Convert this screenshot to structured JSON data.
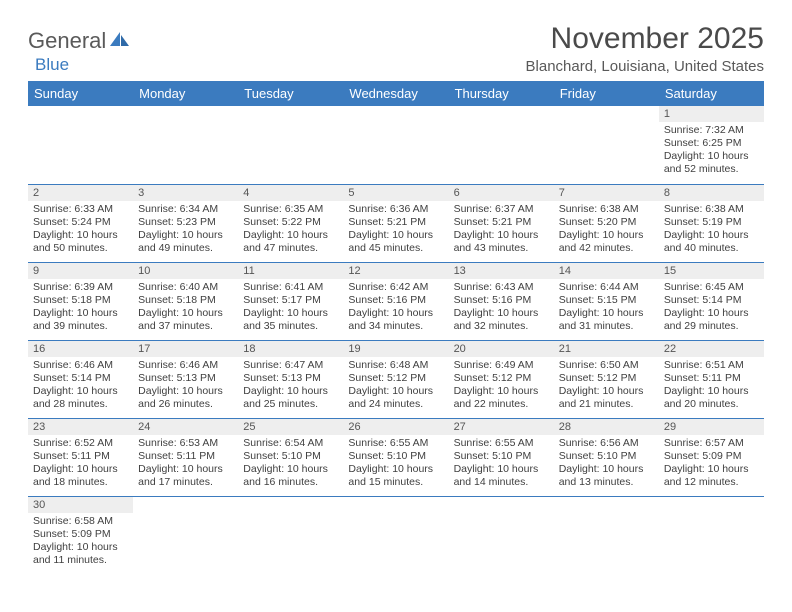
{
  "brand": {
    "part1": "General",
    "part2": "Blue",
    "logo_color": "#3b7bbf"
  },
  "title": "November 2025",
  "location": "Blanchard, Louisiana, United States",
  "colors": {
    "header_bg": "#3b7bbf",
    "header_fg": "#ffffff",
    "daybar_bg": "#eeeeee",
    "rule": "#3b7bbf"
  },
  "weekdays": [
    "Sunday",
    "Monday",
    "Tuesday",
    "Wednesday",
    "Thursday",
    "Friday",
    "Saturday"
  ],
  "weeks": [
    [
      null,
      null,
      null,
      null,
      null,
      null,
      {
        "n": "1",
        "sr": "Sunrise: 7:32 AM",
        "ss": "Sunset: 6:25 PM",
        "d1": "Daylight: 10 hours",
        "d2": "and 52 minutes."
      }
    ],
    [
      {
        "n": "2",
        "sr": "Sunrise: 6:33 AM",
        "ss": "Sunset: 5:24 PM",
        "d1": "Daylight: 10 hours",
        "d2": "and 50 minutes."
      },
      {
        "n": "3",
        "sr": "Sunrise: 6:34 AM",
        "ss": "Sunset: 5:23 PM",
        "d1": "Daylight: 10 hours",
        "d2": "and 49 minutes."
      },
      {
        "n": "4",
        "sr": "Sunrise: 6:35 AM",
        "ss": "Sunset: 5:22 PM",
        "d1": "Daylight: 10 hours",
        "d2": "and 47 minutes."
      },
      {
        "n": "5",
        "sr": "Sunrise: 6:36 AM",
        "ss": "Sunset: 5:21 PM",
        "d1": "Daylight: 10 hours",
        "d2": "and 45 minutes."
      },
      {
        "n": "6",
        "sr": "Sunrise: 6:37 AM",
        "ss": "Sunset: 5:21 PM",
        "d1": "Daylight: 10 hours",
        "d2": "and 43 minutes."
      },
      {
        "n": "7",
        "sr": "Sunrise: 6:38 AM",
        "ss": "Sunset: 5:20 PM",
        "d1": "Daylight: 10 hours",
        "d2": "and 42 minutes."
      },
      {
        "n": "8",
        "sr": "Sunrise: 6:38 AM",
        "ss": "Sunset: 5:19 PM",
        "d1": "Daylight: 10 hours",
        "d2": "and 40 minutes."
      }
    ],
    [
      {
        "n": "9",
        "sr": "Sunrise: 6:39 AM",
        "ss": "Sunset: 5:18 PM",
        "d1": "Daylight: 10 hours",
        "d2": "and 39 minutes."
      },
      {
        "n": "10",
        "sr": "Sunrise: 6:40 AM",
        "ss": "Sunset: 5:18 PM",
        "d1": "Daylight: 10 hours",
        "d2": "and 37 minutes."
      },
      {
        "n": "11",
        "sr": "Sunrise: 6:41 AM",
        "ss": "Sunset: 5:17 PM",
        "d1": "Daylight: 10 hours",
        "d2": "and 35 minutes."
      },
      {
        "n": "12",
        "sr": "Sunrise: 6:42 AM",
        "ss": "Sunset: 5:16 PM",
        "d1": "Daylight: 10 hours",
        "d2": "and 34 minutes."
      },
      {
        "n": "13",
        "sr": "Sunrise: 6:43 AM",
        "ss": "Sunset: 5:16 PM",
        "d1": "Daylight: 10 hours",
        "d2": "and 32 minutes."
      },
      {
        "n": "14",
        "sr": "Sunrise: 6:44 AM",
        "ss": "Sunset: 5:15 PM",
        "d1": "Daylight: 10 hours",
        "d2": "and 31 minutes."
      },
      {
        "n": "15",
        "sr": "Sunrise: 6:45 AM",
        "ss": "Sunset: 5:14 PM",
        "d1": "Daylight: 10 hours",
        "d2": "and 29 minutes."
      }
    ],
    [
      {
        "n": "16",
        "sr": "Sunrise: 6:46 AM",
        "ss": "Sunset: 5:14 PM",
        "d1": "Daylight: 10 hours",
        "d2": "and 28 minutes."
      },
      {
        "n": "17",
        "sr": "Sunrise: 6:46 AM",
        "ss": "Sunset: 5:13 PM",
        "d1": "Daylight: 10 hours",
        "d2": "and 26 minutes."
      },
      {
        "n": "18",
        "sr": "Sunrise: 6:47 AM",
        "ss": "Sunset: 5:13 PM",
        "d1": "Daylight: 10 hours",
        "d2": "and 25 minutes."
      },
      {
        "n": "19",
        "sr": "Sunrise: 6:48 AM",
        "ss": "Sunset: 5:12 PM",
        "d1": "Daylight: 10 hours",
        "d2": "and 24 minutes."
      },
      {
        "n": "20",
        "sr": "Sunrise: 6:49 AM",
        "ss": "Sunset: 5:12 PM",
        "d1": "Daylight: 10 hours",
        "d2": "and 22 minutes."
      },
      {
        "n": "21",
        "sr": "Sunrise: 6:50 AM",
        "ss": "Sunset: 5:12 PM",
        "d1": "Daylight: 10 hours",
        "d2": "and 21 minutes."
      },
      {
        "n": "22",
        "sr": "Sunrise: 6:51 AM",
        "ss": "Sunset: 5:11 PM",
        "d1": "Daylight: 10 hours",
        "d2": "and 20 minutes."
      }
    ],
    [
      {
        "n": "23",
        "sr": "Sunrise: 6:52 AM",
        "ss": "Sunset: 5:11 PM",
        "d1": "Daylight: 10 hours",
        "d2": "and 18 minutes."
      },
      {
        "n": "24",
        "sr": "Sunrise: 6:53 AM",
        "ss": "Sunset: 5:11 PM",
        "d1": "Daylight: 10 hours",
        "d2": "and 17 minutes."
      },
      {
        "n": "25",
        "sr": "Sunrise: 6:54 AM",
        "ss": "Sunset: 5:10 PM",
        "d1": "Daylight: 10 hours",
        "d2": "and 16 minutes."
      },
      {
        "n": "26",
        "sr": "Sunrise: 6:55 AM",
        "ss": "Sunset: 5:10 PM",
        "d1": "Daylight: 10 hours",
        "d2": "and 15 minutes."
      },
      {
        "n": "27",
        "sr": "Sunrise: 6:55 AM",
        "ss": "Sunset: 5:10 PM",
        "d1": "Daylight: 10 hours",
        "d2": "and 14 minutes."
      },
      {
        "n": "28",
        "sr": "Sunrise: 6:56 AM",
        "ss": "Sunset: 5:10 PM",
        "d1": "Daylight: 10 hours",
        "d2": "and 13 minutes."
      },
      {
        "n": "29",
        "sr": "Sunrise: 6:57 AM",
        "ss": "Sunset: 5:09 PM",
        "d1": "Daylight: 10 hours",
        "d2": "and 12 minutes."
      }
    ],
    [
      {
        "n": "30",
        "sr": "Sunrise: 6:58 AM",
        "ss": "Sunset: 5:09 PM",
        "d1": "Daylight: 10 hours",
        "d2": "and 11 minutes."
      },
      null,
      null,
      null,
      null,
      null,
      null
    ]
  ]
}
